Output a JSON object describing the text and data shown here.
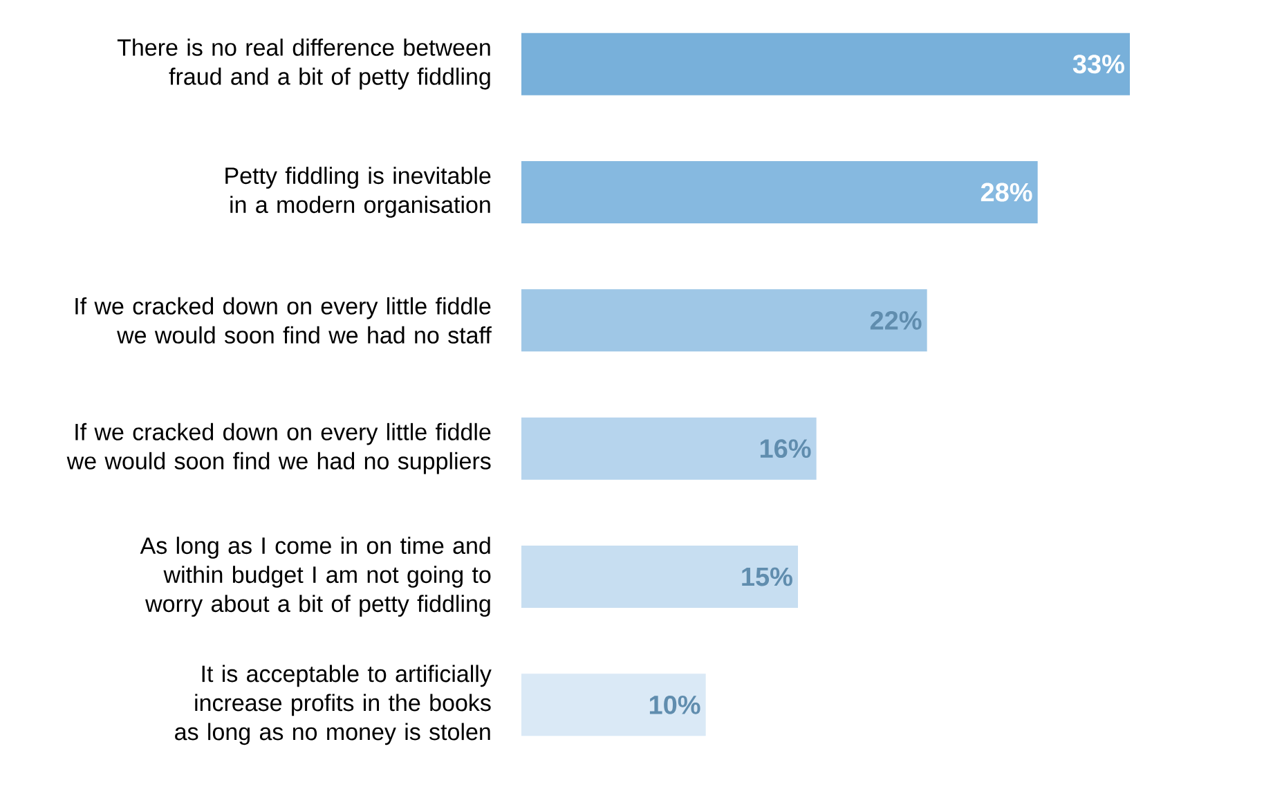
{
  "chart_data": {
    "type": "bar",
    "orientation": "horizontal",
    "categories": [
      "There is no real difference between fraud and a bit of petty fiddling",
      "Petty fiddling is inevitable in a modern organisation",
      "If we cracked down on every little fiddle we would soon find we had no staff",
      "If we cracked down on every little fiddle we would soon find we had no suppliers",
      "As long as I come in on time and within budget I am not going to worry about a bit of petty fiddling",
      "It is acceptable to artificially increase profits in the books as long as no money is stolen"
    ],
    "values": [
      33,
      28,
      22,
      16,
      15,
      10
    ],
    "value_labels": [
      "33%",
      "28%",
      "22%",
      "16%",
      "15%",
      "10%"
    ],
    "colors": [
      "#78b0da",
      "#86b9e0",
      "#9fc7e6",
      "#b6d4ed",
      "#c7def1",
      "#dae9f6"
    ]
  }
}
